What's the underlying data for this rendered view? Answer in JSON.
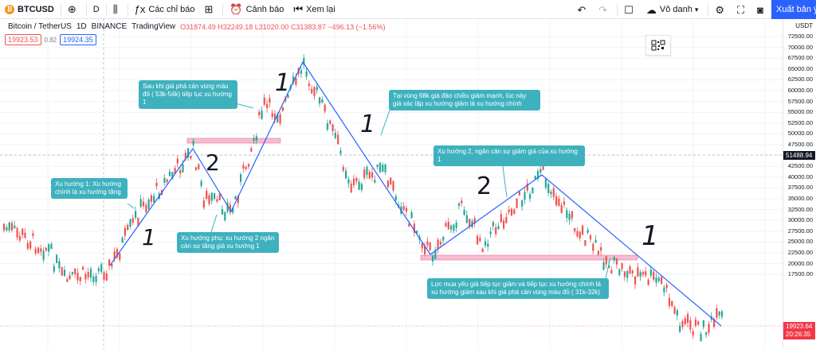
{
  "toolbar": {
    "symbol": "BTCUSD",
    "interval": "D",
    "indicators": "Các chỉ báo",
    "alert": "Cảnh báo",
    "replay": "Xem lại",
    "layout_name": "Vô danh",
    "publish": "Xuất bản ý tư"
  },
  "legend": {
    "title": "Bitcoin / TetherUS",
    "interval": "1D",
    "exchange": "BINANCE",
    "source": "TradingView",
    "open": "O31874.49",
    "high": "H32249.18",
    "low": "L31020.00",
    "close": "C31383.87",
    "change": "−496.13 (−1.56%)",
    "bid": "19923.53",
    "spread": "0.82",
    "ask": "19924.35"
  },
  "axis": {
    "currency": "USDT",
    "ticks": [
      "72500.00",
      "70000.00",
      "67500.00",
      "65000.00",
      "62500.00",
      "60000.00",
      "57500.00",
      "55000.00",
      "52500.00",
      "50000.00",
      "47500.00",
      "45000.00",
      "42500.00",
      "40000.00",
      "37500.00",
      "35000.00",
      "32500.00",
      "30000.00",
      "27500.00",
      "25000.00",
      "22500.00",
      "20000.00",
      "17500.00"
    ],
    "crosshair_price": "51488.94",
    "current_price": "19923.64",
    "countdown": "20:26:35"
  },
  "notes": {
    "n1": "Xu hướng 1: Xu hướng chính là xu hướng tăng",
    "n2": "Xu hướng phụ: xu hướng 2 ngăn cản sự tăng giá xu hướng 1",
    "n3": "Sau khi giá phá cản vùng màu đỏ ( 53k-54k) tiếp tục xu hướng 1",
    "n4": "Tại vùng 68k giá đảo chiều giảm mạnh, lúc này giá xác lập xu hướng giảm là xu hướng chính",
    "n5": "Xu hướng 2, ngăn cản sự giảm giá của xu hướng 1",
    "n6": "Lực mua yếu giá tiếp tục giảm và tiếp tục xu hướng chính là xu hướng giảm sau khi giá phá cản vùng màu đỏ ( 31k-32k)"
  },
  "handwriting": {
    "one": "1",
    "two": "2"
  },
  "colors": {
    "up": "#26a69a",
    "down": "#ef5350",
    "trend_line": "#2962ff",
    "zone": "#f8bbd0",
    "note_bg": "#3eb1be"
  }
}
